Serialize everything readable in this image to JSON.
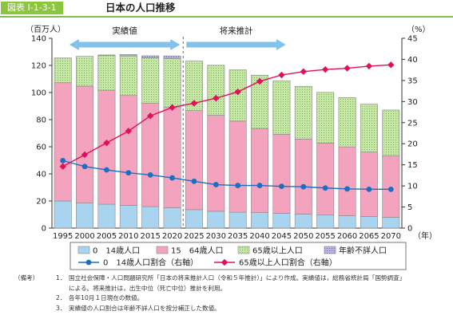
{
  "figure": {
    "number": "図表 Ⅰ-1-3-1",
    "title": "日本の人口推移"
  },
  "chart_data": {
    "type": "bar",
    "stacked": true,
    "categories": [
      "1995",
      "2000",
      "2005",
      "2010",
      "2015",
      "2020",
      "2025",
      "2030",
      "2035",
      "2040",
      "2045",
      "2050",
      "2055",
      "2060",
      "2065",
      "2070"
    ],
    "y_left": {
      "label": "（百万人）",
      "ylim": [
        0,
        140
      ],
      "ticks": [
        0,
        20,
        40,
        60,
        80,
        100,
        120,
        140
      ]
    },
    "y_right": {
      "label": "（%）",
      "ylim": [
        0,
        45
      ],
      "ticks": [
        0,
        5,
        10,
        15,
        20,
        25,
        30,
        35,
        40,
        45
      ]
    },
    "x_unit": "（年）",
    "series": [
      {
        "name": "0　14歳人口",
        "kind": "bar",
        "color": "#a9d4ef",
        "values": [
          20.0,
          18.5,
          17.6,
          16.8,
          15.9,
          15.0,
          13.6,
          12.4,
          11.7,
          11.4,
          10.9,
          10.3,
          9.6,
          9.1,
          8.6,
          8.0
        ]
      },
      {
        "name": "15　64歳人口",
        "kind": "bar",
        "color": "#f3a3bd",
        "values": [
          87.2,
          86.2,
          84.1,
          81.0,
          76.3,
          74.0,
          73.1,
          70.8,
          67.2,
          62.1,
          58.3,
          55.4,
          53.1,
          50.8,
          47.5,
          45.4
        ]
      },
      {
        "name": "65歳以上人口",
        "kind": "bar",
        "color": "#c6e6a6",
        "values": [
          18.3,
          22.0,
          25.7,
          29.2,
          33.5,
          36.0,
          36.5,
          36.9,
          37.8,
          39.3,
          39.5,
          38.9,
          37.4,
          36.4,
          35.3,
          33.7
        ]
      },
      {
        "name": "年齢不詳人口",
        "kind": "bar",
        "color": "#b9b4e3",
        "values": [
          0,
          0,
          0.3,
          1.0,
          1.4,
          2.0,
          0,
          0,
          0,
          0,
          0,
          0,
          0,
          0,
          0,
          0
        ]
      },
      {
        "name": "0　14歳人口割合（右軸）",
        "kind": "line",
        "axis": "right",
        "color": "#1a6fc0",
        "marker": "circle",
        "values": [
          16.0,
          14.6,
          13.8,
          13.1,
          12.6,
          11.9,
          11.1,
          10.3,
          10.1,
          10.1,
          9.9,
          9.8,
          9.5,
          9.3,
          9.2,
          9.2
        ]
      },
      {
        "name": "65歳以上人口割合（右軸）",
        "kind": "line",
        "axis": "right",
        "color": "#e0105e",
        "marker": "diamond",
        "values": [
          14.6,
          17.4,
          20.2,
          23.0,
          26.6,
          28.6,
          29.6,
          30.8,
          32.3,
          34.8,
          36.3,
          37.1,
          37.6,
          37.9,
          38.4,
          38.7
        ]
      }
    ],
    "annotations": {
      "actual_label": "実績値",
      "projection_label": "将来推計",
      "arrow_color": "#82c3ec",
      "divider_after": "2020"
    },
    "legend": {
      "placement": "bottom",
      "rows": [
        [
          0,
          1,
          2,
          3
        ],
        [
          4,
          5
        ]
      ]
    },
    "grid": false
  },
  "notes": {
    "heading": "（備考）",
    "items": [
      {
        "num": "1．",
        "text": "国立社会保障・人口問題研究所「日本の将来推計人口（令和５年推計）」により作成。実績値は，総務省統計局「国勢調査」"
      },
      {
        "num": "",
        "text": "による。将来推計は，出生中位（死亡中位）推計を利用。"
      },
      {
        "num": "2．",
        "text": "各年10月１日現在の数値。"
      },
      {
        "num": "3．",
        "text": "実績値の人口割合は年齢不詳人口を按分補正した数値。"
      }
    ]
  }
}
